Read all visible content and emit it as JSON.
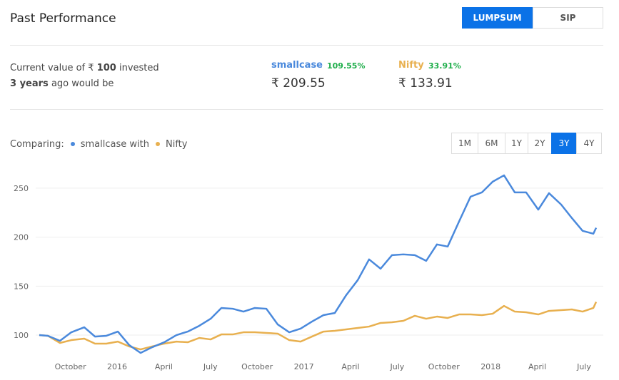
{
  "header": {
    "title": "Past Performance",
    "tabs": [
      "LUMPSUM",
      "SIP"
    ],
    "active_tab": 0
  },
  "summary": {
    "line1_pre": "Current value of ₹",
    "amount": "100",
    "line1_post": "invested",
    "years": "3 years",
    "line2_post": "ago would be",
    "items": [
      {
        "name": "smallcase",
        "change": "109.55%",
        "value": "₹ 209.55"
      },
      {
        "name": "Nifty",
        "change": "33.91%",
        "value": "₹ 133.91"
      }
    ]
  },
  "comparing": {
    "label": "Comparing:",
    "connector": "with"
  },
  "periods": [
    "1M",
    "6M",
    "1Y",
    "2Y",
    "3Y",
    "4Y"
  ],
  "active_period": 4,
  "chart_data": {
    "type": "line",
    "grid": true,
    "xlim": [
      0,
      35.78
    ],
    "xticks": [
      {
        "value": 2,
        "label": "October"
      },
      {
        "value": 5,
        "label": "2016"
      },
      {
        "value": 8,
        "label": "April"
      },
      {
        "value": 11,
        "label": "July"
      },
      {
        "value": 14,
        "label": "October"
      },
      {
        "value": 17,
        "label": "2017"
      },
      {
        "value": 20,
        "label": "April"
      },
      {
        "value": 23,
        "label": "July"
      },
      {
        "value": 26,
        "label": "October"
      },
      {
        "value": 29,
        "label": "2018"
      },
      {
        "value": 32,
        "label": "April"
      },
      {
        "value": 35,
        "label": "July"
      }
    ],
    "ylim": [
      80,
      268
    ],
    "yticks": [
      100,
      150,
      200,
      250
    ],
    "x": [
      0,
      0.55,
      1.33,
      2.06,
      2.89,
      3.58,
      4.31,
      5.05,
      5.78,
      6.51,
      7.25,
      8.03,
      8.81,
      9.54,
      10.28,
      11.01,
      11.7,
      12.43,
      13.12,
      13.85,
      14.59,
      15.32,
      16.06,
      16.79,
      17.52,
      18.26,
      18.99,
      19.72,
      20.46,
      21.19,
      21.93,
      22.66,
      23.39,
      24.13,
      24.86,
      25.55,
      26.24,
      26.97,
      27.71,
      28.44,
      29.13,
      29.86,
      30.55,
      31.28,
      32.06,
      32.75,
      33.53,
      34.22,
      34.91,
      35.6,
      35.78
    ],
    "series": [
      {
        "name": "smallcase",
        "color": "#4a89dc",
        "values": [
          100,
          99.3,
          94.2,
          102.9,
          108,
          98.5,
          99.3,
          103.6,
          89.8,
          81.8,
          87.6,
          92.7,
          100,
          103.6,
          109.5,
          116.7,
          127.7,
          126.9,
          124,
          127.7,
          126.9,
          110.9,
          102.9,
          106.6,
          113.8,
          120.4,
          122.6,
          140.8,
          156.1,
          177.3,
          167.8,
          181.6,
          182.4,
          181.6,
          175.8,
          192.6,
          190.4,
          215.9,
          241.3,
          245.7,
          256.6,
          263.1,
          245.7,
          245.7,
          228.1,
          244.9,
          233.3,
          219.5,
          206.4,
          203.5,
          209.55
        ]
      },
      {
        "name": "Nifty",
        "color": "#e8b04f",
        "values": [
          100,
          99.3,
          92,
          94.9,
          96.4,
          91.3,
          91.3,
          93.4,
          88.4,
          85.4,
          88.4,
          91.3,
          93.4,
          92.7,
          97.1,
          95.6,
          100.7,
          100.7,
          102.9,
          102.9,
          102.2,
          101.5,
          94.9,
          93.4,
          98.5,
          103.6,
          104.4,
          105.8,
          107.3,
          108.7,
          112.4,
          113.1,
          114.6,
          119.7,
          116.7,
          118.9,
          117.5,
          121.1,
          121.1,
          120.4,
          121.8,
          129.8,
          124,
          123.3,
          121.1,
          124.7,
          125.5,
          126.2,
          124,
          127.7,
          133.91
        ]
      }
    ]
  }
}
